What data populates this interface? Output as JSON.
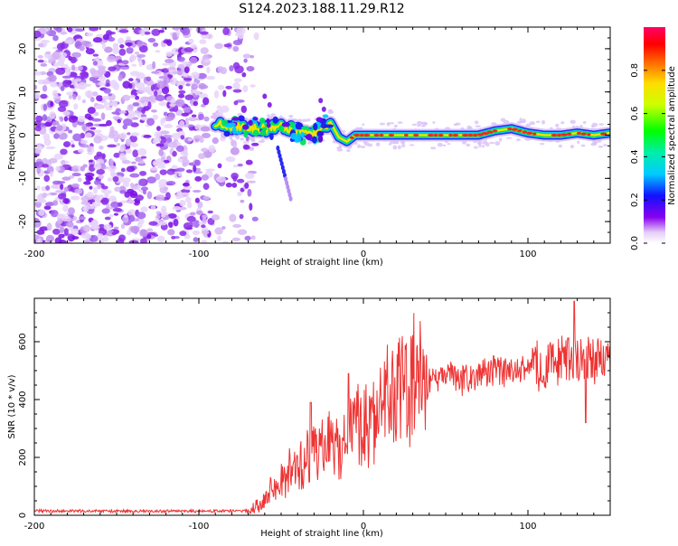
{
  "title": "S124.2023.188.11.29.R12",
  "chart_data": [
    {
      "type": "heatmap",
      "title": "S124.2023.188.11.29.R12",
      "xlabel": "Height of straight line (km)",
      "ylabel": "Frequency (Hz)",
      "xlim": [
        -200,
        150
      ],
      "ylim": [
        -25,
        25
      ],
      "xticks": [
        -200,
        -100,
        0,
        100
      ],
      "yticks": [
        -20,
        -10,
        0,
        10,
        20
      ],
      "noise_region_x": [
        -200,
        -75
      ],
      "signal_start_x": -90,
      "signal_track": {
        "x": [
          -90,
          -80,
          -70,
          -60,
          -50,
          -40,
          -30,
          -25,
          -20,
          -15,
          -10,
          -5,
          0,
          10,
          20,
          30,
          40,
          50,
          60,
          70,
          80,
          90,
          100,
          110,
          120,
          130,
          140,
          150
        ],
        "y": [
          2.5,
          2.0,
          1.5,
          1.5,
          2.0,
          1.0,
          0.5,
          1.5,
          3.0,
          -0.5,
          -1.5,
          0.0,
          0.0,
          0.0,
          0.0,
          0.0,
          0.0,
          0.0,
          0.0,
          0.0,
          1.0,
          1.5,
          0.5,
          0.0,
          0.0,
          0.5,
          0.0,
          0.5
        ]
      },
      "colorbar": {
        "label": "Normalized spectral amplitude",
        "range": [
          0,
          1
        ],
        "ticks": [
          0.0,
          0.2,
          0.4,
          0.6,
          0.8
        ]
      }
    },
    {
      "type": "line",
      "xlabel": "Height of straight line (km)",
      "ylabel": "SNR (10 * v/v)",
      "xlim": [
        -200,
        150
      ],
      "ylim": [
        0,
        750
      ],
      "xticks": [
        -200,
        -100,
        0,
        100
      ],
      "yticks": [
        0,
        200,
        400,
        600
      ],
      "series": [
        {
          "name": "SNR",
          "color": "#ee3333",
          "x": [
            -200,
            -150,
            -100,
            -70,
            -65,
            -60,
            -55,
            -50,
            -45,
            -40,
            -38,
            -35,
            -30,
            -25,
            -20,
            -15,
            -10,
            -8,
            -5,
            0,
            5,
            10,
            15,
            20,
            25,
            30,
            35,
            40,
            45,
            50,
            55,
            60,
            70,
            80,
            90,
            100,
            110,
            120,
            125,
            130,
            135,
            140,
            150
          ],
          "values": [
            15,
            14,
            14,
            15,
            35,
            60,
            90,
            120,
            150,
            190,
            170,
            200,
            210,
            230,
            240,
            250,
            280,
            300,
            300,
            320,
            350,
            380,
            400,
            420,
            440,
            450,
            460,
            470,
            475,
            480,
            485,
            470,
            490,
            500,
            490,
            510,
            520,
            540,
            545,
            540,
            535,
            540,
            530
          ]
        }
      ]
    }
  ]
}
